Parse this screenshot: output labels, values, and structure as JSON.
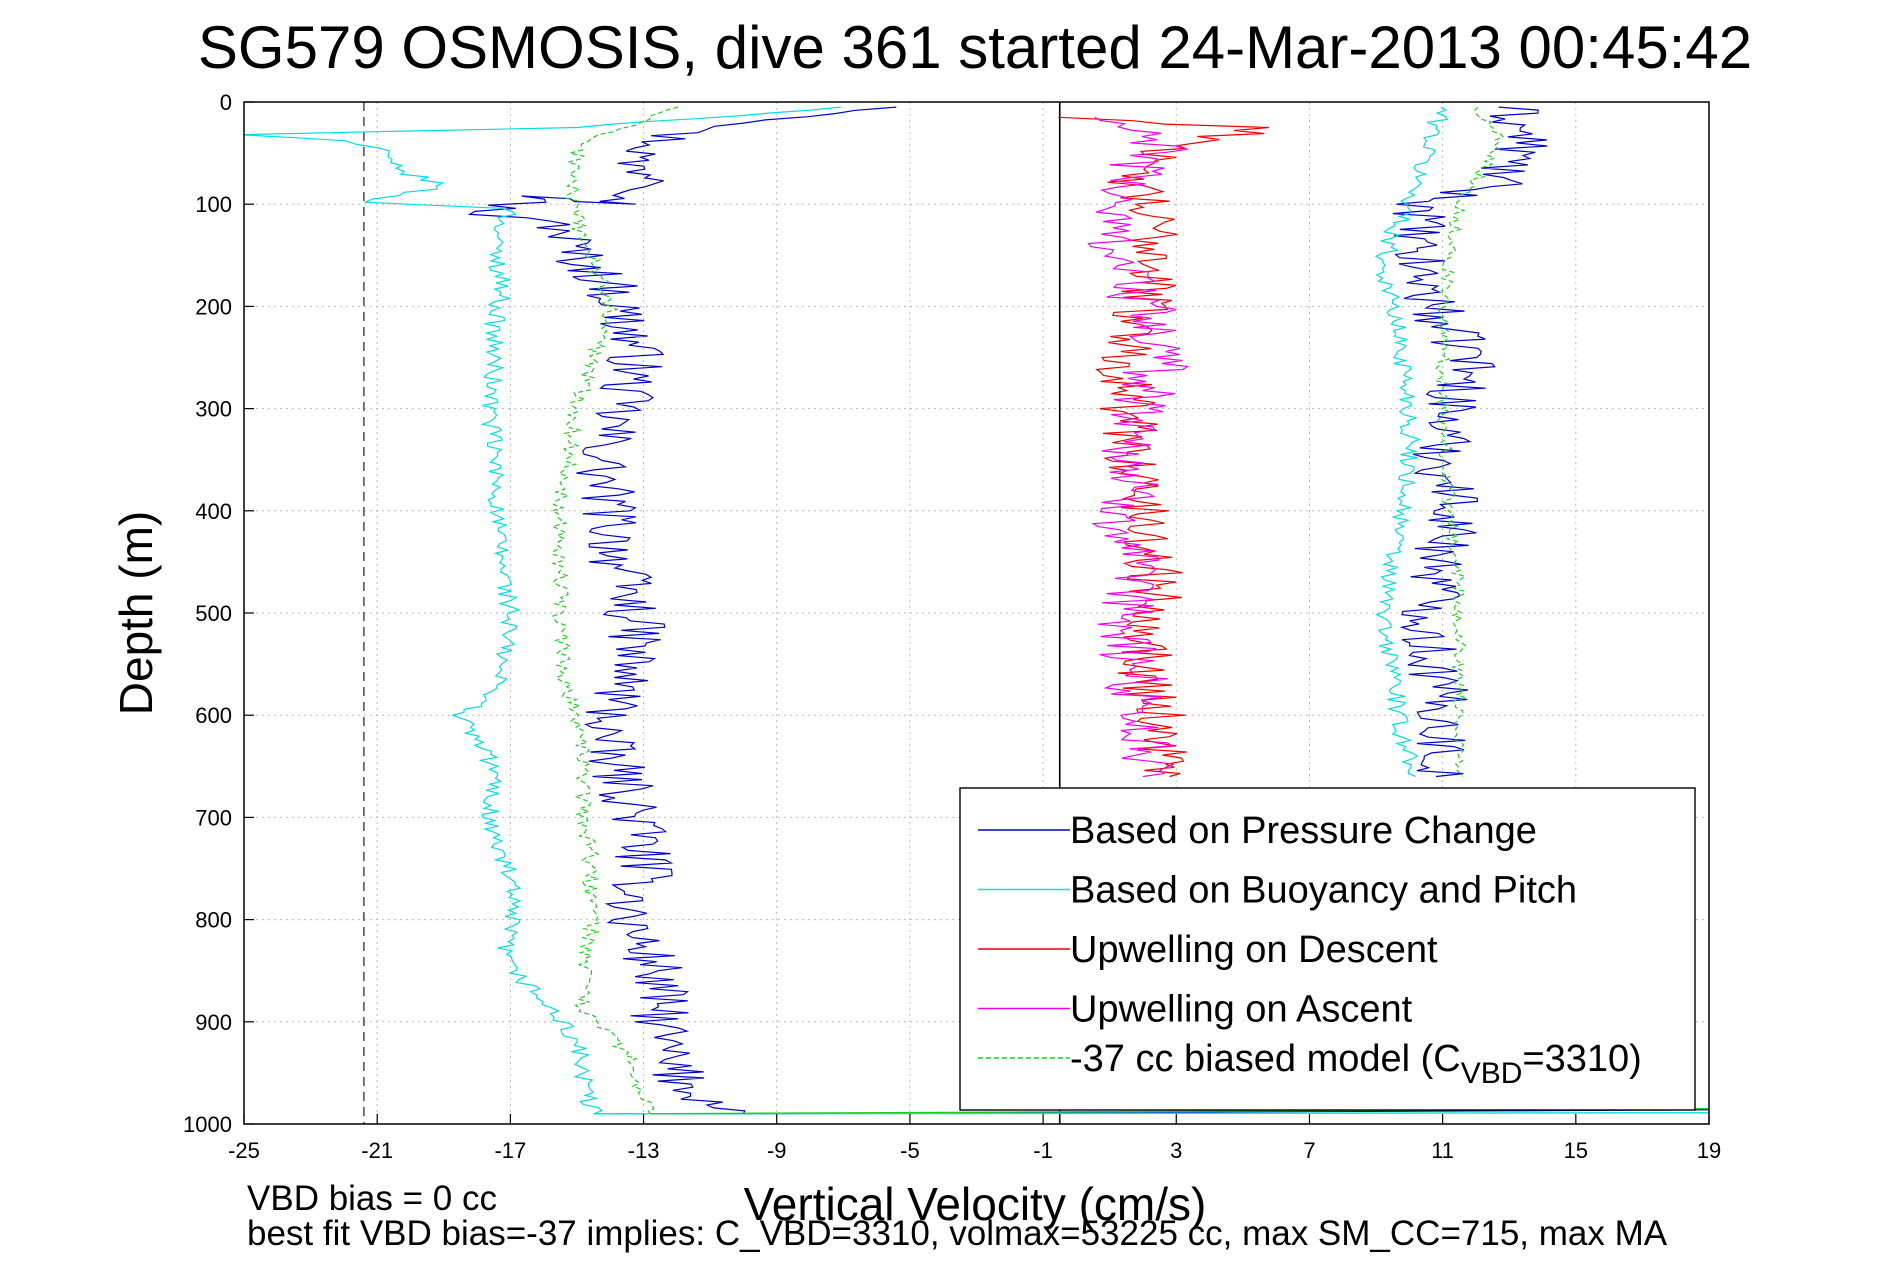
{
  "chart_data": {
    "type": "line",
    "title": "SG579 OSMOSIS, dive 361 started 24-Mar-2013 00:45:42",
    "xlabel": "Vertical Velocity (cm/s)",
    "ylabel": "Depth (m)",
    "xlim": [
      -25,
      19
    ],
    "ylim": [
      0,
      1000
    ],
    "y_reversed": true,
    "grid": true,
    "legend_position": "bottom-right",
    "x_ticks": [
      -25,
      -21,
      -17,
      -13,
      -9,
      -5,
      -1,
      3,
      7,
      11,
      15,
      19
    ],
    "y_ticks": [
      0,
      100,
      200,
      300,
      400,
      500,
      600,
      700,
      800,
      900,
      1000
    ],
    "x_tick_labels": [
      "-25",
      "-21",
      "-17",
      "-13",
      "-9",
      "-5",
      "-1",
      "3",
      "7",
      "11",
      "15",
      "19"
    ],
    "y_tick_labels": [
      "0",
      "100",
      "200",
      "300",
      "400",
      "500",
      "600",
      "700",
      "800",
      "900",
      "1000"
    ],
    "reference_lines": [
      {
        "x": -21.4,
        "style": "dashed",
        "color": "#555555"
      },
      {
        "x": -0.5,
        "style": "solid",
        "color": "#000000"
      }
    ],
    "series": [
      {
        "name": "Based on Pressure Change",
        "color": "#0000cc",
        "style": "solid",
        "jitter": 0.9,
        "x": [
          -5,
          -12,
          -13.5,
          -12,
          -13.8,
          -16,
          -18,
          -15.5,
          -15,
          -14,
          -13.5,
          -13.2,
          -13.5,
          -14,
          -14.3,
          -14,
          -13.8,
          -13.5,
          -13.2,
          -13.5,
          -14,
          -14.2,
          -13.7,
          -13.3,
          -13,
          -13,
          -13.5,
          -12.6,
          -12.5,
          -12.3,
          -11.5,
          -10
        ],
        "y": [
          5,
          30,
          60,
          80,
          100,
          92,
          110,
          120,
          150,
          180,
          220,
          250,
          280,
          320,
          360,
          400,
          450,
          480,
          520,
          560,
          600,
          630,
          660,
          690,
          720,
          760,
          800,
          850,
          900,
          940,
          970,
          990
        ]
      },
      {
        "name": "Based on Pressure Change",
        "color": "#0000cc",
        "style": "solid",
        "jitter": 0.9,
        "x": [
          13,
          13.5,
          12.5,
          10.5,
          10,
          10.5,
          11,
          12,
          11.5,
          11,
          11,
          11.5,
          11,
          10.8,
          10.5,
          10.8,
          11,
          11,
          10.8
        ],
        "y": [
          5,
          40,
          80,
          100,
          140,
          180,
          220,
          250,
          280,
          320,
          360,
          400,
          440,
          480,
          520,
          560,
          600,
          640,
          660
        ]
      },
      {
        "name": "Based on Buoyancy and Pitch",
        "color": "#00dddd",
        "style": "solid",
        "jitter": 0.3,
        "x": [
          -7,
          -15,
          -25,
          -22,
          -21,
          -20.5,
          -19,
          -21.5,
          -17,
          -17.5,
          -17.2,
          -17.5,
          -17.5,
          -17.6,
          -17.5,
          -17.4,
          -17.4,
          -17.2,
          -17,
          -17.2,
          -17.5,
          -18.5,
          -17.5,
          -17.6,
          -17.5,
          -17,
          -17,
          -17.2,
          -16,
          -15,
          -14.8,
          -14.5
        ],
        "y": [
          5,
          25,
          32,
          38,
          45,
          65,
          82,
          98,
          104,
          140,
          180,
          220,
          260,
          300,
          340,
          380,
          420,
          460,
          500,
          540,
          580,
          600,
          650,
          700,
          720,
          760,
          800,
          840,
          880,
          920,
          960,
          990
        ]
      },
      {
        "name": "Based on Buoyancy and Pitch",
        "color": "#00dddd",
        "style": "solid",
        "jitter": 0.3,
        "x": [
          11,
          10.5,
          10,
          9.5,
          9.2,
          9.5,
          9.8,
          10,
          10,
          9.8,
          9.5,
          9.3,
          9.2,
          9.6,
          9.6,
          10,
          10.2
        ],
        "y": [
          5,
          50,
          100,
          130,
          160,
          200,
          250,
          300,
          360,
          400,
          440,
          480,
          520,
          560,
          600,
          640,
          660
        ]
      },
      {
        "name": "Upwelling on Descent",
        "color": "#ee0000",
        "style": "solid",
        "jitter": 0.9,
        "x": [
          -0.5,
          5.5,
          1.5,
          2,
          2.5,
          2,
          1.5,
          1.5,
          2,
          2.5,
          2,
          2.5,
          2.8
        ],
        "y": [
          15,
          25,
          60,
          100,
          150,
          200,
          250,
          300,
          400,
          500,
          550,
          600,
          660
        ]
      },
      {
        "name": "Upwelling on Ascent",
        "color": "#ee00ee",
        "style": "solid",
        "jitter": 1.0,
        "x": [
          0.5,
          2.5,
          1.5,
          1,
          1.5,
          2,
          2.5,
          2,
          1.5,
          1.5,
          1.5,
          2,
          2
        ],
        "y": [
          15,
          40,
          80,
          120,
          160,
          200,
          250,
          300,
          380,
          460,
          520,
          600,
          660
        ]
      },
      {
        "name": "-37 cc biased model (C_VBD=3310)",
        "color": "#22cc22",
        "style": "dashed",
        "jitter": 0.25,
        "x": [
          -12,
          -14.5,
          -15,
          -15.2,
          -14,
          -15,
          -15.5,
          -15.5,
          -15.4,
          -15,
          -14.8,
          -14.8,
          -14.6,
          -14.6,
          -14.5,
          -14.8,
          -14.8,
          -13.5,
          -13.2,
          -12.8,
          -12.8
        ],
        "y": [
          5,
          35,
          50,
          100,
          200,
          300,
          400,
          500,
          560,
          600,
          650,
          700,
          730,
          760,
          800,
          850,
          890,
          930,
          960,
          985,
          990
        ]
      },
      {
        "name": "-37 cc biased model (C_VBD=3310)",
        "color": "#22cc22",
        "style": "dashed",
        "jitter": 0.2,
        "x": [
          12,
          12.8,
          11.5,
          11,
          11,
          11.2,
          11.5,
          11.5,
          11.5,
          11.5,
          11.6
        ],
        "y": [
          5,
          40,
          100,
          200,
          300,
          400,
          470,
          520,
          580,
          620,
          660
        ]
      }
    ],
    "bottom_spikes": [
      {
        "color": "#0000cc",
        "x": [
          -11.5,
          13,
          19
        ],
        "y": [
          990,
          987,
          986
        ]
      },
      {
        "color": "#00dddd",
        "x": [
          -14.5,
          19
        ],
        "y": [
          990,
          989
        ]
      },
      {
        "color": "#22cc22",
        "x": [
          -12.8,
          19
        ],
        "y": [
          990,
          985
        ]
      }
    ],
    "legend": [
      {
        "label": "Based on Pressure Change",
        "color": "#0000cc",
        "style": "solid"
      },
      {
        "label": "Based on Buoyancy and Pitch",
        "color": "#00dddd",
        "style": "solid"
      },
      {
        "label": "Upwelling on Descent",
        "color": "#ee0000",
        "style": "solid"
      },
      {
        "label": "Upwelling on Ascent",
        "color": "#ee00ee",
        "style": "solid"
      },
      {
        "label_prefix": "-37 cc biased model (C",
        "label_sub": "VBD",
        "label_suffix": "=3310)",
        "color": "#22cc22",
        "style": "dashed"
      }
    ],
    "annotations": [
      "VBD bias = 0 cc",
      "best fit VBD bias=-37 implies: C_VBD=3310, volmax=53225 cc, max SM_CC=715, max MA"
    ]
  }
}
